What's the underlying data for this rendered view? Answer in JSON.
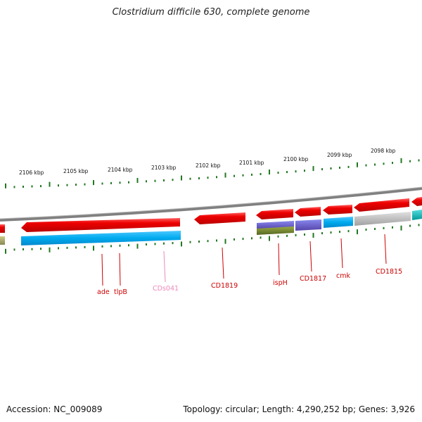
{
  "title": "Clostridium difficile 630, complete genome",
  "footer": {
    "accession": "Accession: NC_009089",
    "summary": "Topology: circular; Length: 4,290,252 bp; Genes: 3,926"
  },
  "scale_labels": [
    "2106 kbp",
    "2105 kbp",
    "2104 kbp",
    "2103 kbp",
    "2102 kbp",
    "2101 kbp",
    "2100 kbp",
    "2099 kbp",
    "2098 kbp"
  ],
  "gene_labels": [
    {
      "name": "ade",
      "color": "#cc0000"
    },
    {
      "name": "tlpB",
      "color": "#cc0000"
    },
    {
      "name": "CDs041",
      "color": "#ee88bb"
    },
    {
      "name": "CD1819",
      "color": "#cc0000"
    },
    {
      "name": "ispH",
      "color": "#cc0000"
    },
    {
      "name": "CD1817",
      "color": "#cc0000"
    },
    {
      "name": "cmk",
      "color": "#cc0000"
    },
    {
      "name": "CD1815",
      "color": "#cc0000"
    }
  ],
  "colors": {
    "forward_cds": "#ee0000",
    "reverse_cds": "#00aaee",
    "tick": "#227722",
    "backbone": "#888888",
    "label_red": "#cc0000",
    "label_pink": "#ee88bb"
  }
}
